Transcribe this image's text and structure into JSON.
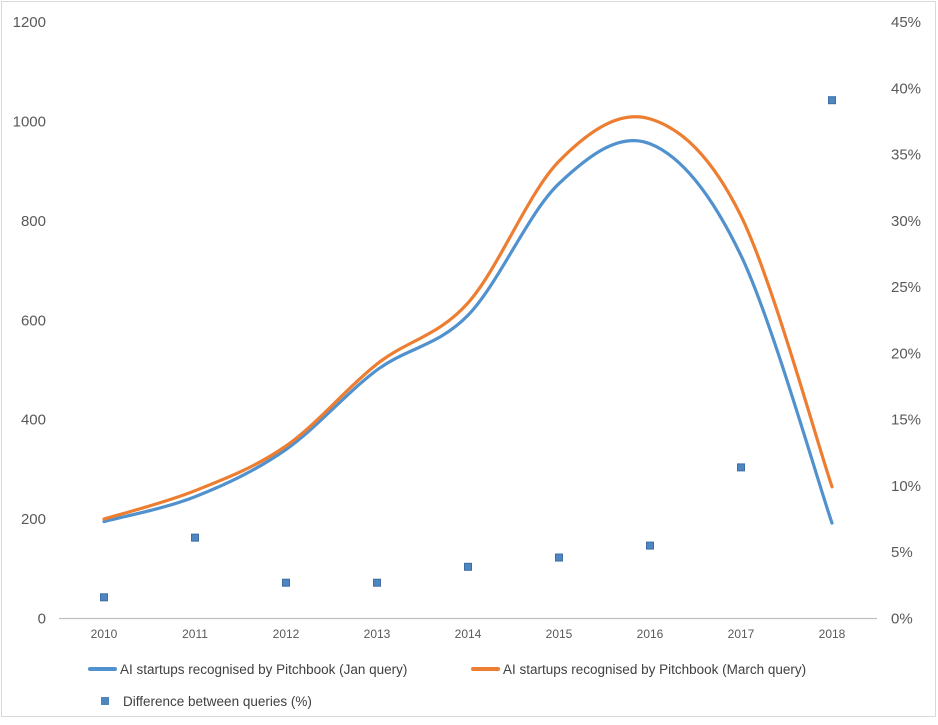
{
  "chart_data": {
    "type": "line",
    "title": "",
    "categories": [
      "2010",
      "2011",
      "2012",
      "2013",
      "2014",
      "2015",
      "2016",
      "2017",
      "2018"
    ],
    "series": [
      {
        "id": "jan-query",
        "name": "AI startups recognised by Pitchbook (Jan query)",
        "type": "line",
        "axis": "left",
        "color": "#5091CE",
        "values": [
          195,
          245,
          340,
          500,
          610,
          875,
          955,
          730,
          192
        ]
      },
      {
        "id": "march-query",
        "name": "AI startups recognised by Pitchbook (March query)",
        "type": "line",
        "axis": "left",
        "color": "#ED7D31",
        "values": [
          200,
          257,
          347,
          512,
          635,
          920,
          1005,
          810,
          265
        ]
      },
      {
        "id": "difference",
        "name": "Difference between queries (%)",
        "type": "scatter",
        "axis": "right",
        "color": "#4E86C0",
        "border_color": "#3D6EA5",
        "values": [
          1.6,
          6.1,
          2.7,
          2.7,
          3.9,
          4.6,
          5.5,
          11.4,
          39.1
        ]
      }
    ],
    "left_axis": {
      "min": 0,
      "max": 1200,
      "step": 200,
      "ticks": [
        "0",
        "200",
        "400",
        "600",
        "800",
        "1000",
        "1200"
      ]
    },
    "right_axis": {
      "min": 0,
      "max": 45,
      "step": 5,
      "ticks": [
        "0%",
        "5%",
        "10%",
        "15%",
        "20%",
        "25%",
        "30%",
        "35%",
        "40%",
        "45%"
      ]
    },
    "xlabel": "",
    "ylabel": "",
    "grid": false,
    "legend_position": "bottom-left",
    "axis_color": "#BFBFBF",
    "tick_text_color": "#595959",
    "legend_text_color": "#404040"
  }
}
